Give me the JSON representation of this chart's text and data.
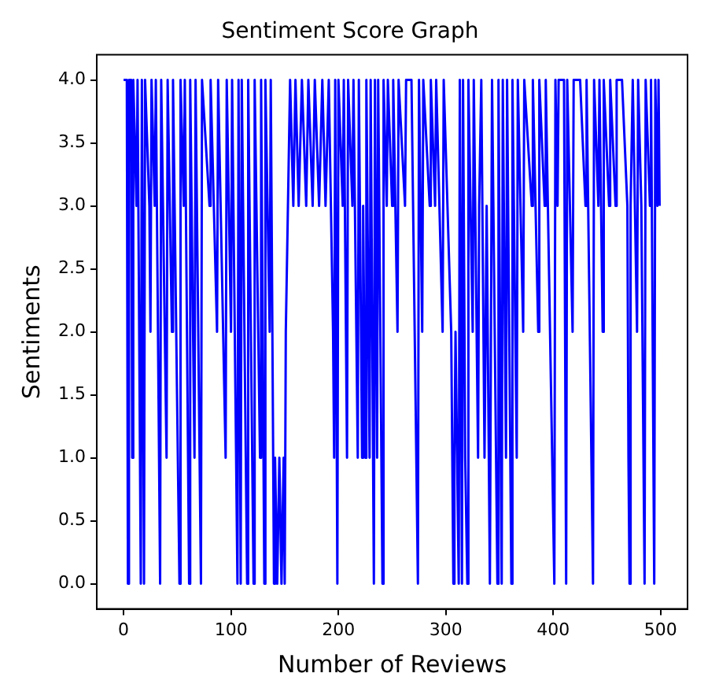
{
  "chart_data": {
    "type": "line",
    "title": "Sentiment Score Graph",
    "xlabel": "Number of Reviews",
    "ylabel": "Sentiments",
    "xlim": [
      -25,
      525
    ],
    "xticks": [
      0,
      100,
      200,
      300,
      400,
      500
    ],
    "ylim": [
      -0.2,
      4.2
    ],
    "yticks": [
      {
        "value": 0,
        "label": "0.0"
      },
      {
        "value": 0.5,
        "label": "0.5"
      },
      {
        "value": 1,
        "label": "1.0"
      },
      {
        "value": 1.5,
        "label": "1.5"
      },
      {
        "value": 2,
        "label": "2.0"
      },
      {
        "value": 2.5,
        "label": "2.5"
      },
      {
        "value": 3,
        "label": "3.0"
      },
      {
        "value": 3.5,
        "label": "3.5"
      },
      {
        "value": 4,
        "label": "4.0"
      }
    ],
    "grid": false,
    "legend": false,
    "marker": "none",
    "line_style": "solid",
    "series": [
      {
        "color": "#0000ff",
        "x": [
          0,
          3,
          4,
          5,
          7,
          8,
          9,
          12,
          13,
          16,
          17,
          19,
          20,
          24,
          25,
          26,
          29,
          30,
          34,
          35,
          40,
          41,
          45,
          46,
          52,
          53,
          56,
          57,
          61,
          62,
          66,
          67,
          72,
          73,
          80,
          81,
          87,
          88,
          95,
          96,
          100,
          101,
          106,
          107,
          109,
          110,
          115,
          116,
          121,
          122,
          127,
          128,
          131,
          132,
          136,
          137,
          140,
          141,
          143,
          145,
          147,
          149,
          150,
          151,
          153,
          155,
          158,
          160,
          163,
          166,
          170,
          172,
          176,
          178,
          182,
          185,
          188,
          191,
          195,
          196,
          197,
          199,
          200,
          204,
          205,
          208,
          209,
          213,
          214,
          218,
          219,
          222,
          223,
          225,
          226,
          229,
          230,
          233,
          234,
          236,
          237,
          241,
          242,
          245,
          246,
          250,
          251,
          255,
          256,
          262,
          263,
          268,
          274,
          275,
          278,
          279,
          285,
          286,
          290,
          291,
          297,
          298,
          305,
          306,
          307,
          308,
          309,
          312,
          313,
          315,
          316,
          318,
          320,
          321,
          325,
          326,
          330,
          331,
          333,
          336,
          338,
          340,
          341,
          343,
          348,
          349,
          352,
          353,
          356,
          357,
          361,
          362,
          366,
          367,
          372,
          373,
          380,
          381,
          386,
          387,
          392,
          393,
          401,
          402,
          404,
          405,
          410,
          412,
          413,
          418,
          419,
          425,
          430,
          431,
          437,
          438,
          442,
          443,
          446,
          447,
          452,
          453,
          458,
          459,
          464,
          469,
          470,
          471,
          472,
          474,
          478,
          479,
          482,
          485,
          486,
          490,
          491,
          494,
          495,
          497,
          498,
          499
        ],
        "values": [
          4,
          4,
          0,
          4,
          4,
          1,
          4,
          3,
          4,
          0,
          4,
          0,
          4,
          3,
          2,
          4,
          3,
          4,
          0,
          4,
          1,
          4,
          2,
          4,
          0,
          4,
          3,
          4,
          0,
          4,
          1,
          4,
          0,
          4,
          3,
          4,
          2,
          4,
          1,
          4,
          2,
          4,
          0,
          4,
          0,
          4,
          0,
          4,
          0,
          4,
          1,
          4,
          0,
          4,
          2,
          4,
          0,
          1,
          0,
          1,
          0,
          1,
          0,
          2,
          3,
          4,
          3,
          4,
          3,
          4,
          3,
          4,
          3,
          4,
          3,
          4,
          3,
          4,
          2,
          1,
          4,
          0,
          4,
          3,
          4,
          1,
          4,
          3,
          4,
          1,
          4,
          1,
          3,
          1,
          4,
          1,
          4,
          0,
          4,
          1,
          4,
          0,
          4,
          3,
          4,
          3,
          4,
          2,
          4,
          3,
          4,
          4,
          0,
          4,
          2,
          4,
          3,
          4,
          3,
          4,
          2,
          4,
          2,
          1,
          0,
          1,
          2,
          0,
          4,
          0,
          4,
          1,
          0,
          4,
          2,
          4,
          1,
          3,
          4,
          1,
          3,
          1,
          0,
          4,
          0,
          4,
          0,
          4,
          1,
          4,
          0,
          4,
          1,
          4,
          2,
          4,
          3,
          4,
          2,
          4,
          3,
          4,
          0,
          4,
          3,
          4,
          4,
          0,
          4,
          2,
          4,
          4,
          3,
          4,
          0,
          4,
          3,
          4,
          2,
          4,
          3,
          4,
          3,
          4,
          4,
          3,
          1,
          0,
          3,
          4,
          2,
          4,
          3,
          0,
          4,
          3,
          4,
          0,
          4,
          3,
          4,
          3
        ]
      }
    ]
  }
}
